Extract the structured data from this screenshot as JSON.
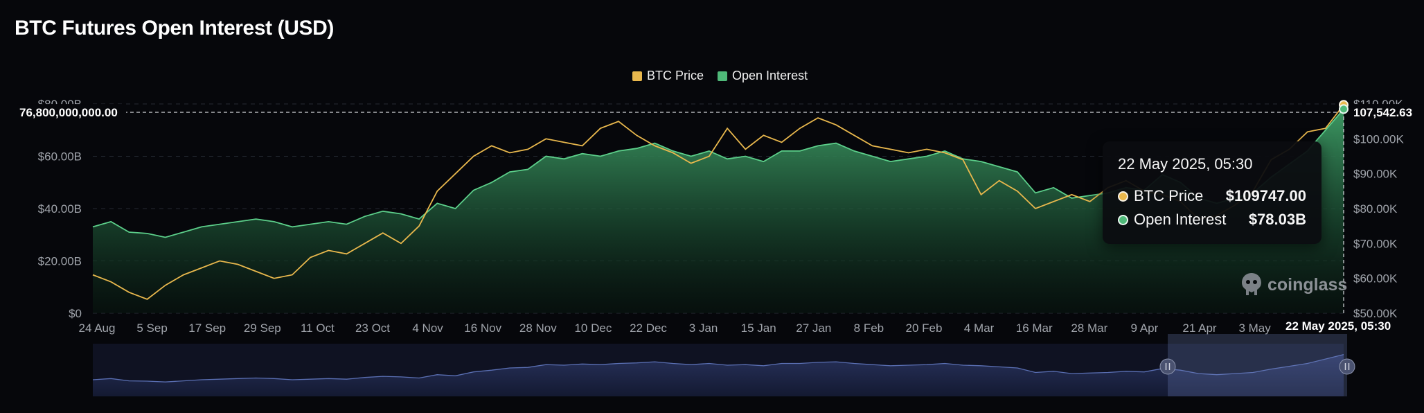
{
  "title": "BTC Futures Open Interest (USD)",
  "legend": {
    "items": [
      {
        "label": "BTC Price",
        "color": "#e9b84d"
      },
      {
        "label": "Open Interest",
        "color": "#4fb979"
      }
    ]
  },
  "tooltip": {
    "date": "22 May 2025, 05:30",
    "rows": [
      {
        "label": "BTC Price",
        "value": "$109747.00",
        "color": "#e9b84d"
      },
      {
        "label": "Open Interest",
        "value": "$78.03B",
        "color": "#4fb979"
      }
    ]
  },
  "crosshair": {
    "left_label": "76,800,000,000.00",
    "right_label": "107,542.63",
    "x_label": "22 May 2025, 05:30"
  },
  "watermark": {
    "text": "coinglass",
    "icon": "coinglass-logo-icon"
  },
  "colors": {
    "background": "#06070b",
    "price": "#e9b84d",
    "oi": "#4fb979",
    "navigator": "#5a6fb3"
  },
  "chart_data": {
    "type": "area",
    "title": "BTC Futures Open Interest (USD)",
    "legend_position": "top-center",
    "grid": true,
    "y_left": {
      "ticks": [
        "$0",
        "$20.00B",
        "$40.00B",
        "$60.00B",
        "$80.00B"
      ],
      "range": [
        0,
        80
      ]
    },
    "y_right": {
      "ticks": [
        "$50.00K",
        "$60.00K",
        "$70.00K",
        "$80.00K",
        "$90.00K",
        "$100.00K",
        "$110.00K"
      ],
      "range": [
        50,
        110
      ]
    },
    "x_ticks": [
      "24 Aug",
      "5 Sep",
      "17 Sep",
      "29 Sep",
      "11 Oct",
      "23 Oct",
      "4 Nov",
      "16 Nov",
      "28 Nov",
      "10 Dec",
      "22 Dec",
      "3 Jan",
      "15 Jan",
      "27 Jan",
      "8 Feb",
      "20 Feb",
      "4 Mar",
      "16 Mar",
      "28 Mar",
      "9 Apr",
      "21 Apr",
      "3 May",
      "22 May 2025, 05:30"
    ],
    "series": [
      {
        "name": "Open Interest",
        "unit": "billion USD",
        "axis": "left",
        "values": [
          33,
          35,
          31,
          30.5,
          29,
          31,
          33,
          34,
          35,
          36,
          35,
          33,
          34,
          35,
          34,
          37,
          39,
          38,
          36,
          42,
          40,
          47,
          50,
          54,
          55,
          60,
          59,
          61,
          60,
          62,
          63,
          65,
          62,
          60,
          62,
          59,
          60,
          58,
          62,
          62,
          64,
          65,
          62,
          60,
          58,
          59,
          60,
          62,
          59,
          58,
          56,
          54,
          46,
          48,
          44,
          45,
          46,
          48,
          47,
          53,
          50,
          44,
          42,
          44,
          46,
          52,
          57,
          62,
          70,
          78.03
        ]
      },
      {
        "name": "BTC Price",
        "unit": "thousand USD",
        "axis": "right",
        "values": [
          61,
          59,
          56,
          54,
          58,
          61,
          63,
          65,
          64,
          62,
          60,
          61,
          66,
          68,
          67,
          70,
          73,
          70,
          75,
          85,
          90,
          95,
          98,
          96,
          97,
          100,
          99,
          98,
          103,
          105,
          101,
          98,
          96,
          93,
          95,
          103,
          97,
          101,
          99,
          103,
          106,
          104,
          101,
          98,
          97,
          96,
          97,
          96,
          94,
          84,
          88,
          85,
          80,
          82,
          84,
          82,
          86,
          88,
          85,
          84,
          82,
          77,
          78,
          81,
          85,
          94,
          97,
          102,
          103,
          109.747
        ]
      }
    ]
  }
}
